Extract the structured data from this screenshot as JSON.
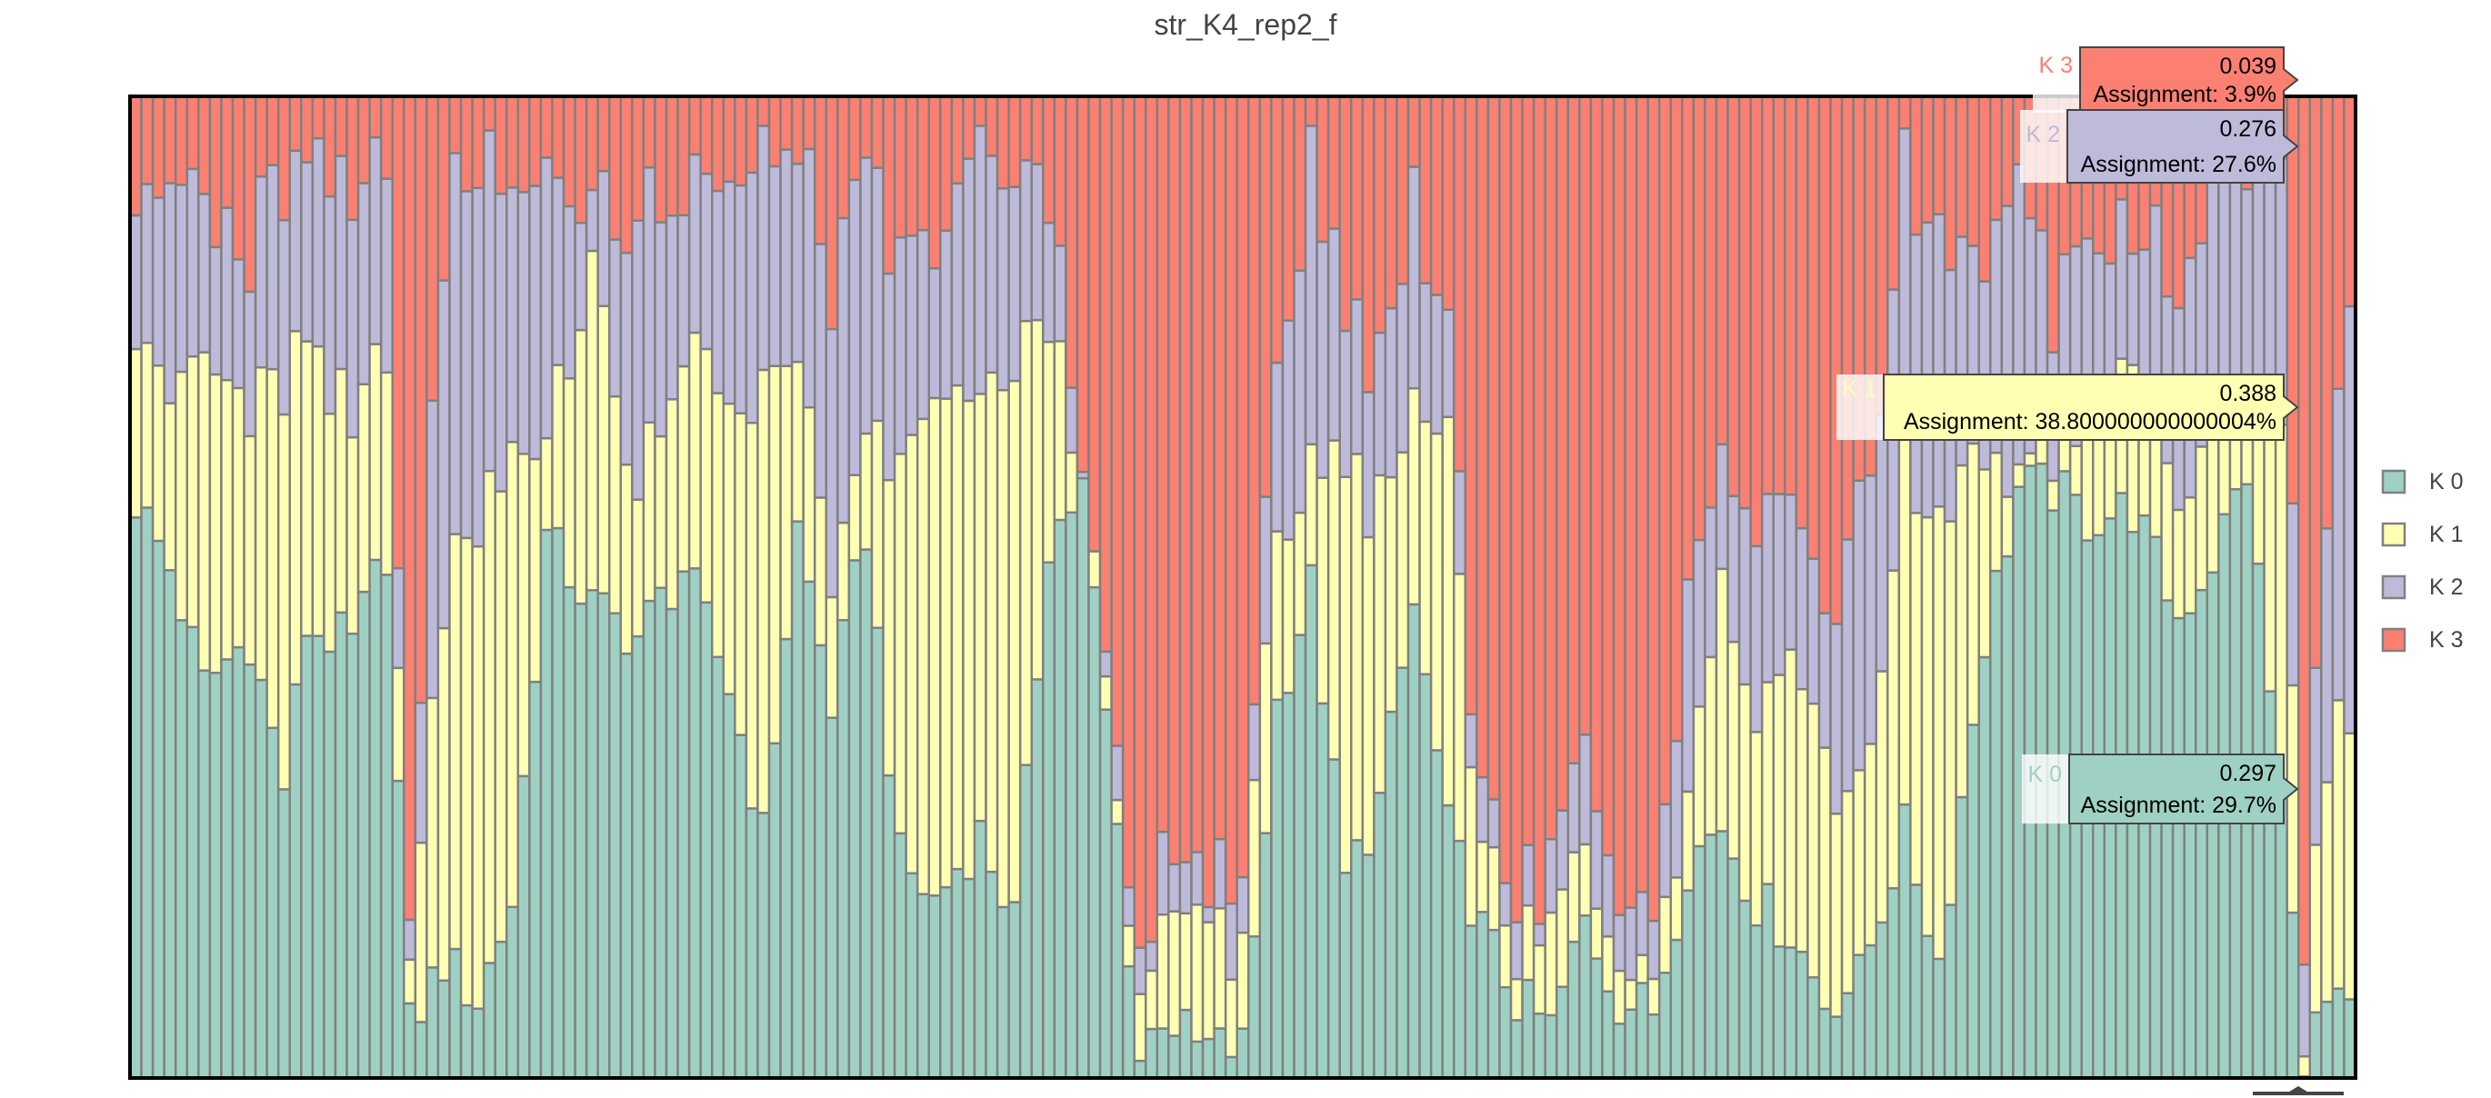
{
  "chart_data": {
    "type": "bar",
    "stacked": true,
    "title": "str_K4_rep2_f",
    "xlabel": "",
    "ylabel": "",
    "ylim": [
      0,
      1
    ],
    "sample_count": 195,
    "series": [
      {
        "name": "K 0",
        "color": "#9ed1c4",
        "profile": [
          [
            0,
            0.59
          ],
          [
            3,
            0.52
          ],
          [
            6,
            0.4
          ],
          [
            10,
            0.45
          ],
          [
            13,
            0.3
          ],
          [
            15,
            0.46
          ],
          [
            19,
            0.44
          ],
          [
            22,
            0.54
          ],
          [
            24,
            0.05
          ],
          [
            27,
            0.12
          ],
          [
            30,
            0.08
          ],
          [
            33,
            0.18
          ],
          [
            36,
            0.55
          ],
          [
            40,
            0.48
          ],
          [
            44,
            0.45
          ],
          [
            48,
            0.52
          ],
          [
            52,
            0.4
          ],
          [
            55,
            0.25
          ],
          [
            58,
            0.56
          ],
          [
            61,
            0.38
          ],
          [
            64,
            0.56
          ],
          [
            67,
            0.22
          ],
          [
            70,
            0.18
          ],
          [
            74,
            0.25
          ],
          [
            77,
            0.16
          ],
          [
            80,
            0.55
          ],
          [
            83,
            0.6
          ],
          [
            88,
            0.02
          ],
          [
            90,
            0.07
          ],
          [
            93,
            0.03
          ],
          [
            97,
            0.03
          ],
          [
            100,
            0.38
          ],
          [
            103,
            0.5
          ],
          [
            106,
            0.2
          ],
          [
            109,
            0.28
          ],
          [
            112,
            0.48
          ],
          [
            115,
            0.25
          ],
          [
            118,
            0.15
          ],
          [
            121,
            0.08
          ],
          [
            124,
            0.05
          ],
          [
            127,
            0.16
          ],
          [
            130,
            0.08
          ],
          [
            133,
            0.07
          ],
          [
            136,
            0.22
          ],
          [
            139,
            0.26
          ],
          [
            142,
            0.18
          ],
          [
            145,
            0.15
          ],
          [
            148,
            0.08
          ],
          [
            151,
            0.1
          ],
          [
            155,
            0.25
          ],
          [
            158,
            0.12
          ],
          [
            162,
            0.45
          ],
          [
            165,
            0.6
          ],
          [
            168,
            0.6
          ],
          [
            171,
            0.57
          ],
          [
            175,
            0.58
          ],
          [
            179,
            0.47
          ],
          [
            182,
            0.53
          ],
          [
            185,
            0.62
          ],
          [
            188,
            0.28
          ],
          [
            190,
            0.03
          ],
          [
            192,
            0.07
          ],
          [
            194,
            0.06
          ]
        ]
      },
      {
        "name": "K 1",
        "color": "#ffffb3",
        "profile": [
          [
            0,
            0.2
          ],
          [
            3,
            0.18
          ],
          [
            6,
            0.32
          ],
          [
            10,
            0.24
          ],
          [
            13,
            0.4
          ],
          [
            15,
            0.29
          ],
          [
            19,
            0.2
          ],
          [
            22,
            0.23
          ],
          [
            24,
            0.05
          ],
          [
            27,
            0.38
          ],
          [
            30,
            0.5
          ],
          [
            33,
            0.48
          ],
          [
            36,
            0.08
          ],
          [
            40,
            0.35
          ],
          [
            44,
            0.14
          ],
          [
            48,
            0.2
          ],
          [
            52,
            0.3
          ],
          [
            55,
            0.45
          ],
          [
            58,
            0.18
          ],
          [
            61,
            0.1
          ],
          [
            64,
            0.1
          ],
          [
            67,
            0.4
          ],
          [
            70,
            0.5
          ],
          [
            74,
            0.45
          ],
          [
            77,
            0.55
          ],
          [
            80,
            0.24
          ],
          [
            83,
            0.0
          ],
          [
            88,
            0.04
          ],
          [
            90,
            0.1
          ],
          [
            93,
            0.13
          ],
          [
            97,
            0.1
          ],
          [
            100,
            0.2
          ],
          [
            103,
            0.1
          ],
          [
            106,
            0.4
          ],
          [
            109,
            0.3
          ],
          [
            112,
            0.2
          ],
          [
            115,
            0.4
          ],
          [
            118,
            0.08
          ],
          [
            121,
            0.04
          ],
          [
            124,
            0.1
          ],
          [
            127,
            0.08
          ],
          [
            130,
            0.06
          ],
          [
            133,
            0.05
          ],
          [
            136,
            0.1
          ],
          [
            139,
            0.25
          ],
          [
            142,
            0.2
          ],
          [
            145,
            0.3
          ],
          [
            148,
            0.25
          ],
          [
            151,
            0.18
          ],
          [
            155,
            0.35
          ],
          [
            158,
            0.45
          ],
          [
            162,
            0.2
          ],
          [
            165,
            0.0
          ],
          [
            168,
            0.05
          ],
          [
            171,
            0.08
          ],
          [
            175,
            0.15
          ],
          [
            179,
            0.13
          ],
          [
            182,
            0.12
          ],
          [
            185,
            0.06
          ],
          [
            188,
            0.39
          ],
          [
            190,
            0.05
          ],
          [
            192,
            0.25
          ],
          [
            194,
            0.3
          ]
        ]
      },
      {
        "name": "K 2",
        "color": "#bebada",
        "profile": [
          [
            0,
            0.15
          ],
          [
            3,
            0.2
          ],
          [
            6,
            0.15
          ],
          [
            10,
            0.16
          ],
          [
            13,
            0.22
          ],
          [
            15,
            0.2
          ],
          [
            19,
            0.25
          ],
          [
            22,
            0.18
          ],
          [
            24,
            0.06
          ],
          [
            27,
            0.38
          ],
          [
            30,
            0.35
          ],
          [
            33,
            0.28
          ],
          [
            36,
            0.26
          ],
          [
            40,
            0.07
          ],
          [
            44,
            0.3
          ],
          [
            48,
            0.16
          ],
          [
            52,
            0.22
          ],
          [
            55,
            0.24
          ],
          [
            58,
            0.2
          ],
          [
            61,
            0.3
          ],
          [
            64,
            0.26
          ],
          [
            67,
            0.2
          ],
          [
            70,
            0.16
          ],
          [
            74,
            0.25
          ],
          [
            77,
            0.18
          ],
          [
            80,
            0.15
          ],
          [
            83,
            0.0
          ],
          [
            88,
            0.05
          ],
          [
            90,
            0.06
          ],
          [
            93,
            0.04
          ],
          [
            97,
            0.05
          ],
          [
            100,
            0.2
          ],
          [
            103,
            0.3
          ],
          [
            106,
            0.15
          ],
          [
            109,
            0.16
          ],
          [
            112,
            0.2
          ],
          [
            115,
            0.11
          ],
          [
            118,
            0.06
          ],
          [
            121,
            0.05
          ],
          [
            124,
            0.05
          ],
          [
            127,
            0.1
          ],
          [
            130,
            0.05
          ],
          [
            133,
            0.04
          ],
          [
            136,
            0.2
          ],
          [
            139,
            0.1
          ],
          [
            142,
            0.2
          ],
          [
            145,
            0.15
          ],
          [
            148,
            0.12
          ],
          [
            151,
            0.28
          ],
          [
            155,
            0.3
          ],
          [
            158,
            0.28
          ],
          [
            162,
            0.2
          ],
          [
            165,
            0.3
          ],
          [
            168,
            0.15
          ],
          [
            171,
            0.2
          ],
          [
            175,
            0.12
          ],
          [
            179,
            0.22
          ],
          [
            182,
            0.24
          ],
          [
            185,
            0.25
          ],
          [
            188,
            0.28
          ],
          [
            190,
            0.07
          ],
          [
            192,
            0.25
          ],
          [
            194,
            0.44
          ]
        ]
      },
      {
        "name": "K 3",
        "color": "#fb8072",
        "profile": "remainder"
      }
    ],
    "legend": {
      "position": "right",
      "entries": [
        "K 0",
        "K 1",
        "K 2",
        "K 3"
      ]
    },
    "hover_labels": [
      {
        "series": "K 3",
        "value": "0.039",
        "detail": "Assignment: 3.9%"
      },
      {
        "series": "K 2",
        "value": "0.276",
        "detail": "Assignment: 27.6%"
      },
      {
        "series": "K 1",
        "value": "0.388",
        "detail": "Assignment: 38.800000000000004%"
      },
      {
        "series": "K 0",
        "value": "0.297",
        "detail": "Assignment: 29.7%"
      }
    ]
  }
}
